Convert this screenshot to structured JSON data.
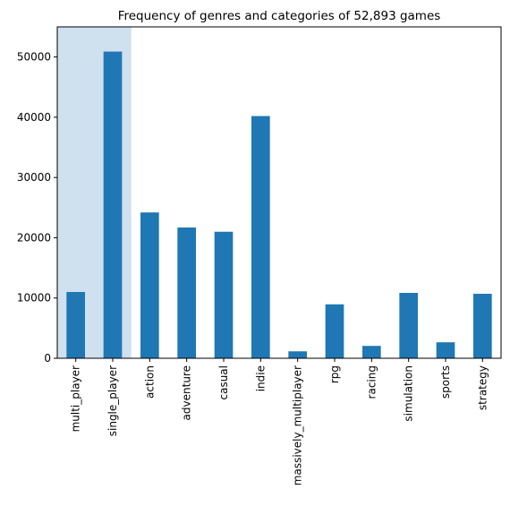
{
  "chart_data": {
    "type": "bar",
    "title": "Frequency of genres and categories of 52,893 games",
    "xlabel": "",
    "ylabel": "",
    "categories": [
      "multi_player",
      "single_player",
      "action",
      "adventure",
      "casual",
      "indie",
      "massively_multiplayer",
      "rpg",
      "racing",
      "simulation",
      "sports",
      "strategy"
    ],
    "values": [
      11000,
      50900,
      24200,
      21700,
      21000,
      40200,
      1150,
      8950,
      2050,
      10850,
      2650,
      10700
    ],
    "ylim": [
      0,
      55000
    ],
    "yticks": [
      0,
      10000,
      20000,
      30000,
      40000,
      50000
    ],
    "bar_color": "#1f77b4",
    "highlight": {
      "categories": [
        "multi_player",
        "single_player"
      ],
      "color": "#cfe0ee"
    },
    "grid": false,
    "legend": "none"
  }
}
